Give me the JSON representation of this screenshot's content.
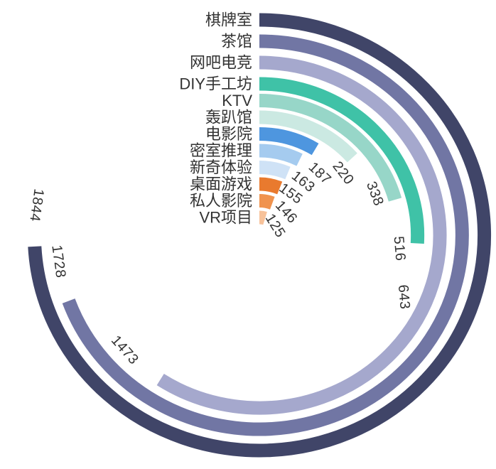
{
  "page": {
    "background_color": "#ffffff",
    "text_color": "#333333"
  },
  "chart_data": {
    "type": "bar",
    "variant": "radial-polar",
    "title": "",
    "xlabel": "",
    "ylabel": "",
    "legend": "none",
    "grid": false,
    "direction": "clockwise",
    "start_position": "top",
    "max_value": 1844,
    "sweep_at_max_deg": 267,
    "categories": [
      "棋牌室",
      "茶馆",
      "网吧电竞",
      "DIY手工坊",
      "KTV",
      "轰趴馆",
      "电影院",
      "密室推理",
      "新奇体验",
      "桌面游戏",
      "私人影院",
      "VR项目"
    ],
    "values": [
      1844,
      1728,
      1473,
      643,
      516,
      338,
      220,
      187,
      163,
      155,
      146,
      125
    ],
    "value_labels": [
      "1844",
      "1728",
      "1473",
      "643",
      "516",
      "338",
      "220",
      "187",
      "163",
      "155",
      "146",
      "125"
    ],
    "bar_colors": [
      "#404568",
      "#7176a4",
      "#a5a8cd",
      "#3fc2a7",
      "#97d6c8",
      "#cbe9e2",
      "#4e96df",
      "#a5cbef",
      "#cfe2f6",
      "#e97a2e",
      "#f0934e",
      "#f7c29a"
    ],
    "category_label_color": "#333333",
    "value_label_color": "#333333",
    "background_color": "#ffffff"
  }
}
